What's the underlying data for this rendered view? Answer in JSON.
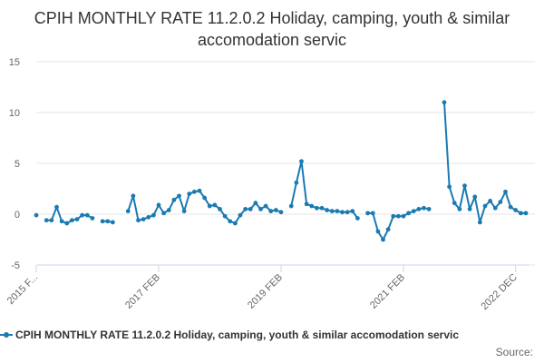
{
  "chart_data": {
    "type": "line",
    "title": "CPIH MONTHLY RATE 11.2.0.2 Holiday, camping, youth & similar accomodation servic",
    "xlabel": "",
    "ylabel": "",
    "ylim": [
      -5,
      15
    ],
    "yticks": [
      -5,
      0,
      5,
      10,
      15
    ],
    "x_tick_labels": [
      "2015 F...",
      "2017 FEB",
      "2019 FEB",
      "2021 FEB",
      "2022 DEC"
    ],
    "x_tick_months": [
      "2015-02",
      "2017-02",
      "2019-02",
      "2021-02",
      "2022-12"
    ],
    "grid": true,
    "legend_position": "bottom",
    "source_label": "Source:",
    "x_start": "2015-02",
    "series": [
      {
        "name": "CPIH MONTHLY RATE 11.2.0.2 Holiday, camping, youth & similar accomodation servic",
        "color": "#1a7ab2",
        "values": [
          -0.1,
          null,
          -0.6,
          -0.6,
          0.7,
          -0.7,
          -0.9,
          -0.6,
          -0.5,
          -0.1,
          -0.1,
          -0.4,
          null,
          -0.7,
          -0.7,
          -0.8,
          null,
          null,
          0.3,
          1.8,
          -0.6,
          -0.5,
          -0.3,
          -0.1,
          0.9,
          0.1,
          0.4,
          1.4,
          1.8,
          0.3,
          2.0,
          2.2,
          2.3,
          1.6,
          0.8,
          0.9,
          0.5,
          -0.2,
          -0.7,
          -0.9,
          -0.1,
          0.5,
          0.5,
          1.1,
          0.5,
          0.8,
          0.3,
          0.4,
          0.2,
          null,
          0.8,
          3.1,
          5.2,
          1.0,
          0.8,
          0.6,
          0.6,
          0.4,
          0.3,
          0.3,
          0.2,
          0.2,
          0.3,
          -0.4,
          null,
          0.1,
          0.1,
          -1.7,
          -2.5,
          -1.5,
          -0.2,
          -0.2,
          -0.2,
          0.1,
          0.3,
          0.5,
          0.6,
          0.5,
          null,
          null,
          11.0,
          2.7,
          1.1,
          0.5,
          2.8,
          0.5,
          1.7,
          -0.8,
          0.8,
          1.3,
          0.6,
          1.2,
          2.2,
          0.7,
          0.4,
          0.1,
          0.1
        ]
      }
    ]
  }
}
